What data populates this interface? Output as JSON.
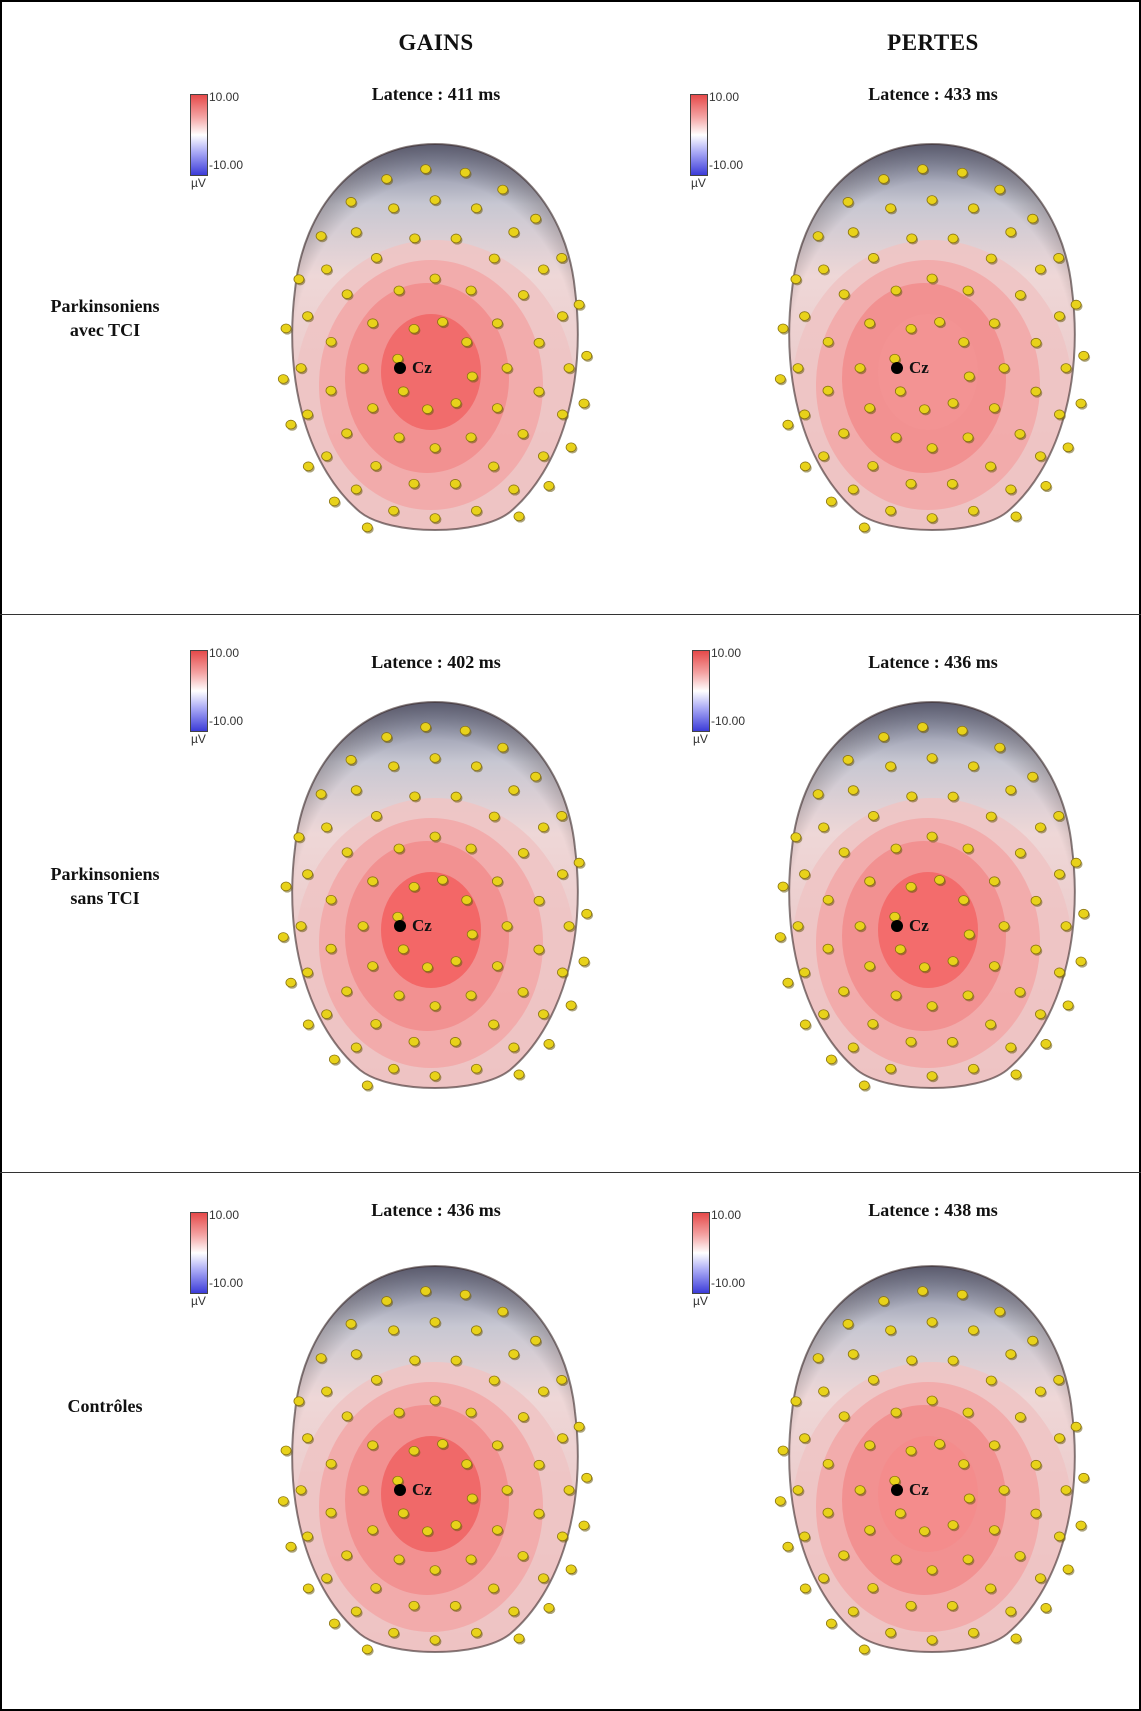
{
  "columns": [
    "GAINS",
    "PERTES"
  ],
  "rows": [
    {
      "label_line1": "Parkinsoniens",
      "label_line2": "avec TCI",
      "panels": [
        {
          "latency": "Latence : 411 ms",
          "cz": "Cz",
          "core": "#f06a6a"
        },
        {
          "latency": "Latence : 433 ms",
          "cz": "Cz",
          "core": "#f29393"
        }
      ]
    },
    {
      "label_line1": "Parkinsoniens",
      "label_line2": "sans TCI",
      "panels": [
        {
          "latency": "Latence : 402 ms",
          "cz": "Cz",
          "core": "#f26565"
        },
        {
          "latency": "Latence : 436 ms",
          "cz": "Cz",
          "core": "#f26a6a"
        }
      ]
    },
    {
      "label_line1": "Contrôles",
      "label_line2": "",
      "panels": [
        {
          "latency": "Latence : 436 ms",
          "cz": "Cz",
          "core": "#ef6767"
        },
        {
          "latency": "Latence : 438 ms",
          "cz": "Cz",
          "core": "#f38c8c"
        }
      ]
    }
  ],
  "colorbar": {
    "max": "10.00",
    "min": "-10.00",
    "unit": "µV"
  },
  "colors": {
    "electrode": "#e8d21a",
    "cz_electrode": "#000000",
    "positive": "#e64a4a",
    "negative": "#3c3cd8"
  }
}
